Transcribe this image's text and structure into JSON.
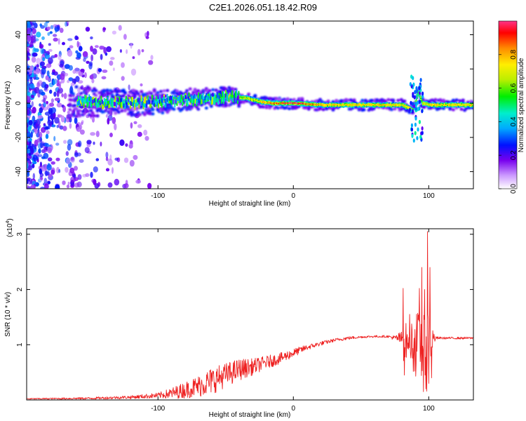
{
  "chart_data": [
    {
      "type": "heatmap",
      "title": "C2E1.2026.051.18.42.R09",
      "xlabel": "Height of straight line (km)",
      "ylabel": "Frequency (Hz)",
      "xlim": [
        -197,
        133
      ],
      "ylim": [
        -50,
        48
      ],
      "xticks": [
        -100,
        0,
        100
      ],
      "xtick_labels": [
        "-100",
        "0",
        "100"
      ],
      "yticks": [
        -40,
        -20,
        0,
        20,
        40
      ],
      "ytick_labels": [
        "-40",
        "-20",
        "0",
        "20",
        "40"
      ],
      "colorbar": {
        "label": "Normalized spectral amplitude",
        "range": [
          0.0,
          1.0
        ],
        "ticks": [
          0.0,
          0.2,
          0.4,
          0.6,
          0.8
        ],
        "tick_labels": [
          "0.0",
          "0.2",
          "0.4",
          "0.6",
          "0.8"
        ]
      },
      "ridge": {
        "description": "central frequency of the carrier line vs height",
        "x": [
          -150,
          -120,
          -100,
          -80,
          -60,
          -45,
          -35,
          -25,
          -15,
          -5,
          0,
          20,
          50,
          80,
          88,
          92,
          95,
          100,
          130
        ],
        "y": [
          1,
          0,
          1,
          2,
          3,
          4,
          3,
          1,
          0,
          0,
          0,
          -1,
          -1,
          -1,
          -4,
          6,
          0,
          -1,
          -1
        ],
        "peak_amplitude": [
          0.3,
          0.35,
          0.4,
          0.45,
          0.5,
          0.55,
          0.6,
          0.75,
          0.85,
          0.95,
          1.0,
          0.75,
          0.75,
          0.75,
          0.6,
          0.5,
          0.6,
          0.75,
          0.75
        ]
      }
    },
    {
      "type": "line",
      "title": "",
      "xlabel": "Height of straight line (km)",
      "ylabel": "SNR (10 * v/v)",
      "scale_label": "(x10",
      "scale_exponent": "4",
      "scale_close": ")",
      "xlim": [
        -197,
        133
      ],
      "ylim": [
        0,
        3.1
      ],
      "xticks": [
        -100,
        0,
        100
      ],
      "xtick_labels": [
        "-100",
        "0",
        "100"
      ],
      "yticks": [
        1,
        2,
        3
      ],
      "ytick_labels": [
        "1",
        "2",
        "3"
      ],
      "color": "#ee2222",
      "series": [
        {
          "name": "SNR",
          "envelope_x": [
            -197,
            -150,
            -120,
            -100,
            -90,
            -80,
            -70,
            -60,
            -50,
            -40,
            -30,
            -20,
            -10,
            0,
            10,
            20,
            30,
            40,
            50,
            60,
            70,
            75,
            78,
            80,
            82,
            85,
            88,
            90,
            93,
            95,
            97,
            98,
            99,
            100,
            102,
            105,
            110,
            120,
            133
          ],
          "envelope_mean": [
            0.02,
            0.03,
            0.05,
            0.08,
            0.12,
            0.18,
            0.25,
            0.35,
            0.45,
            0.55,
            0.6,
            0.68,
            0.75,
            0.85,
            0.95,
            1.02,
            1.08,
            1.12,
            1.14,
            1.15,
            1.15,
            1.12,
            1.12,
            1.1,
            1.1,
            1.0,
            1.05,
            1.0,
            1.0,
            1.05,
            1.0,
            1.1,
            0.9,
            1.1,
            1.1,
            1.12,
            1.12,
            1.12,
            1.12
          ],
          "envelope_noise": [
            0.01,
            0.02,
            0.03,
            0.05,
            0.1,
            0.15,
            0.2,
            0.25,
            0.22,
            0.2,
            0.15,
            0.12,
            0.1,
            0.08,
            0.05,
            0.04,
            0.03,
            0.03,
            0.02,
            0.02,
            0.02,
            0.05,
            0.1,
            0.15,
            0.5,
            0.1,
            0.5,
            0.6,
            0.6,
            0.8,
            0.4,
            1.0,
            0.8,
            0.7,
            0.3,
            0.03,
            0.02,
            0.02,
            0.02
          ],
          "spikes": [
            {
              "x": 81,
              "y": 2.02
            },
            {
              "x": 82,
              "y": 0.45
            },
            {
              "x": 86,
              "y": 1.55
            },
            {
              "x": 93,
              "y": 2.02
            },
            {
              "x": 95,
              "y": 2.4
            },
            {
              "x": 96,
              "y": 0.15
            },
            {
              "x": 97,
              "y": 2.0
            },
            {
              "x": 98,
              "y": 0.2
            },
            {
              "x": 99,
              "y": 3.05
            },
            {
              "x": 100,
              "y": 0.3
            },
            {
              "x": 101,
              "y": 2.4
            },
            {
              "x": 102,
              "y": 0.4
            }
          ]
        }
      ]
    }
  ]
}
